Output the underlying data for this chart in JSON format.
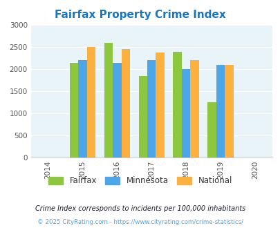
{
  "title": "Fairfax Property Crime Index",
  "years": [
    2015,
    2016,
    2017,
    2018,
    2019
  ],
  "fairfax": [
    2150,
    2600,
    1850,
    2400,
    1250
  ],
  "minnesota": [
    2200,
    2150,
    2200,
    2000,
    2100
  ],
  "national": [
    2500,
    2460,
    2370,
    2200,
    2100
  ],
  "colors": {
    "fairfax": "#8dc63f",
    "minnesota": "#4da6e8",
    "national": "#fbb040"
  },
  "xlim": [
    2013.5,
    2020.5
  ],
  "ylim": [
    0,
    3000
  ],
  "yticks": [
    0,
    500,
    1000,
    1500,
    2000,
    2500,
    3000
  ],
  "xticks": [
    2014,
    2015,
    2016,
    2017,
    2018,
    2019,
    2020
  ],
  "bar_width": 0.25,
  "title_color": "#1a75bc",
  "title_fontsize": 11,
  "background_color": "#e8f4f8",
  "legend_labels": [
    "Fairfax",
    "Minnesota",
    "National"
  ],
  "legend_text_color": "#333333",
  "footnote1": "Crime Index corresponds to incidents per 100,000 inhabitants",
  "footnote2": "© 2025 CityRating.com - https://www.cityrating.com/crime-statistics/",
  "footnote1_color": "#1a1a2e",
  "footnote2_color": "#4da6e8"
}
